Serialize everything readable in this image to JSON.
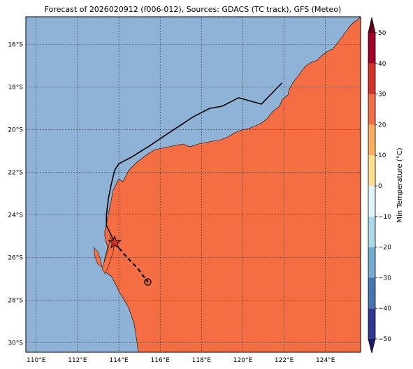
{
  "title": "Forecast of 2026020912 (f006-012), Sources: GDACS (TC track), GFS (Meteo)",
  "colors": {
    "ocean": "#8fb3d6",
    "land": "#f46d43",
    "track": "#000000",
    "marker_star": "#d73027"
  },
  "map": {
    "lon_ticks": [
      {
        "value": 110,
        "label": "110°E"
      },
      {
        "value": 112,
        "label": "112°E"
      },
      {
        "value": 114,
        "label": "114°E"
      },
      {
        "value": 116,
        "label": "116°E"
      },
      {
        "value": 118,
        "label": "118°E"
      },
      {
        "value": 120,
        "label": "120°E"
      },
      {
        "value": 122,
        "label": "122°E"
      },
      {
        "value": 124,
        "label": "124°E"
      }
    ],
    "lat_ticks": [
      {
        "value": -16,
        "label": "16°S"
      },
      {
        "value": -18,
        "label": "18°S"
      },
      {
        "value": -20,
        "label": "20°S"
      },
      {
        "value": -22,
        "label": "22°S"
      },
      {
        "value": -24,
        "label": "24°S"
      },
      {
        "value": -26,
        "label": "26°S"
      },
      {
        "value": -28,
        "label": "28°S"
      },
      {
        "value": -30,
        "label": "30°S"
      }
    ],
    "grid": true,
    "extent": {
      "lon": [
        109.5,
        125.7
      ],
      "lat": [
        -30.45,
        -14.7
      ]
    }
  },
  "track": {
    "past_points": [
      [
        121.9,
        -17.8
      ],
      [
        120.9,
        -18.8
      ],
      [
        119.8,
        -18.5
      ],
      [
        119.0,
        -18.9
      ],
      [
        118.4,
        -19.0
      ],
      [
        117.6,
        -19.4
      ],
      [
        116.5,
        -20.1
      ],
      [
        115.5,
        -20.75
      ],
      [
        114.6,
        -21.3
      ],
      [
        114.0,
        -21.6
      ],
      [
        113.8,
        -21.9
      ],
      [
        113.65,
        -22.5
      ],
      [
        113.5,
        -23.2
      ],
      [
        113.4,
        -24.0
      ],
      [
        113.4,
        -24.5
      ],
      [
        113.8,
        -25.3
      ]
    ],
    "forecast_points": [
      [
        113.8,
        -25.3
      ],
      [
        114.3,
        -25.9
      ],
      [
        114.9,
        -26.5
      ],
      [
        115.4,
        -27.15
      ]
    ],
    "current_position": [
      113.8,
      -25.3
    ],
    "forecast_position": [
      115.4,
      -27.15
    ]
  },
  "colorbar": {
    "label": "Min Temperature (°C)",
    "ticks": [
      {
        "value": -50,
        "label": "−50"
      },
      {
        "value": -40,
        "label": "−40"
      },
      {
        "value": -30,
        "label": "−30"
      },
      {
        "value": -20,
        "label": "−20"
      },
      {
        "value": -10,
        "label": "−10"
      },
      {
        "value": 0,
        "label": "0"
      },
      {
        "value": 10,
        "label": "10"
      },
      {
        "value": 20,
        "label": "20"
      },
      {
        "value": 30,
        "label": "30"
      },
      {
        "value": 40,
        "label": "40"
      },
      {
        "value": 50,
        "label": "50"
      }
    ],
    "colors": [
      "#313695",
      "#4575b4",
      "#74add1",
      "#abd9e9",
      "#e0f3f8",
      "#fee090",
      "#fdae61",
      "#f46d43",
      "#d73027",
      "#a50026"
    ],
    "under_color": "#1a1a6e",
    "over_color": "#67001f",
    "range": [
      -50,
      50
    ]
  }
}
